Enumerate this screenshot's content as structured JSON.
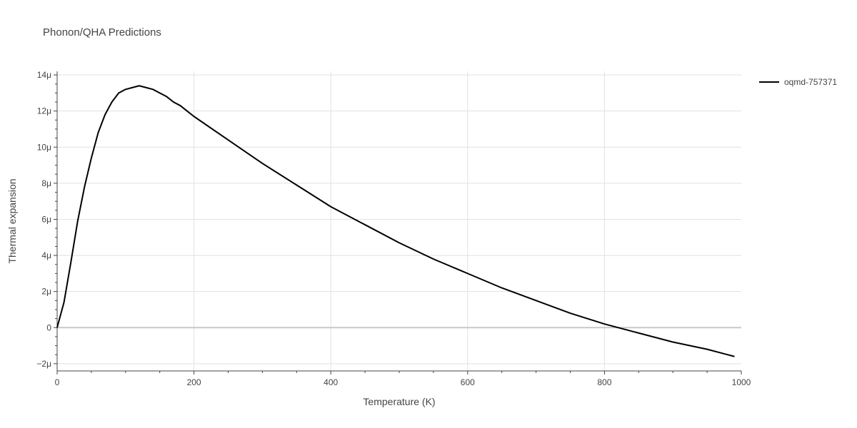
{
  "chart_data": {
    "type": "line",
    "title": "Phonon/QHA Predictions",
    "xlabel": "Temperature (K)",
    "ylabel": "Thermal expansion",
    "xlim": [
      0,
      1000
    ],
    "ylim": [
      -2.4e-06,
      1.42e-05
    ],
    "x_ticks": [
      0,
      200,
      400,
      600,
      800,
      1000
    ],
    "x_tick_labels": [
      "0",
      "200",
      "400",
      "600",
      "800",
      "1000"
    ],
    "y_ticks": [
      -2e-06,
      0,
      2e-06,
      4e-06,
      6e-06,
      8e-06,
      1e-05,
      1.2e-05,
      1.4e-05
    ],
    "y_tick_labels": [
      "−2μ",
      "0",
      "2μ",
      "4μ",
      "6μ",
      "8μ",
      "10μ",
      "12μ",
      "14μ"
    ],
    "grid": true,
    "legend_position": "top-right",
    "series": [
      {
        "name": "oqmd-757371",
        "color": "#000000",
        "x": [
          0,
          10,
          20,
          30,
          40,
          50,
          60,
          70,
          80,
          90,
          100,
          110,
          120,
          130,
          140,
          150,
          160,
          170,
          180,
          190,
          200,
          250,
          300,
          350,
          400,
          450,
          500,
          550,
          600,
          650,
          700,
          750,
          800,
          850,
          900,
          950,
          990
        ],
        "y": [
          0,
          1.4e-06,
          3.6e-06,
          5.9e-06,
          7.8e-06,
          9.4e-06,
          1.08e-05,
          1.18e-05,
          1.25e-05,
          1.3e-05,
          1.32e-05,
          1.33e-05,
          1.34e-05,
          1.33e-05,
          1.32e-05,
          1.3e-05,
          1.28e-05,
          1.25e-05,
          1.23e-05,
          1.2e-05,
          1.17e-05,
          1.04e-05,
          9.1e-06,
          7.9e-06,
          6.7e-06,
          5.7e-06,
          4.7e-06,
          3.8e-06,
          3e-06,
          2.2e-06,
          1.5e-06,
          8e-07,
          2e-07,
          -3e-07,
          -8e-07,
          -1.2e-06,
          -1.6e-06
        ]
      }
    ]
  }
}
